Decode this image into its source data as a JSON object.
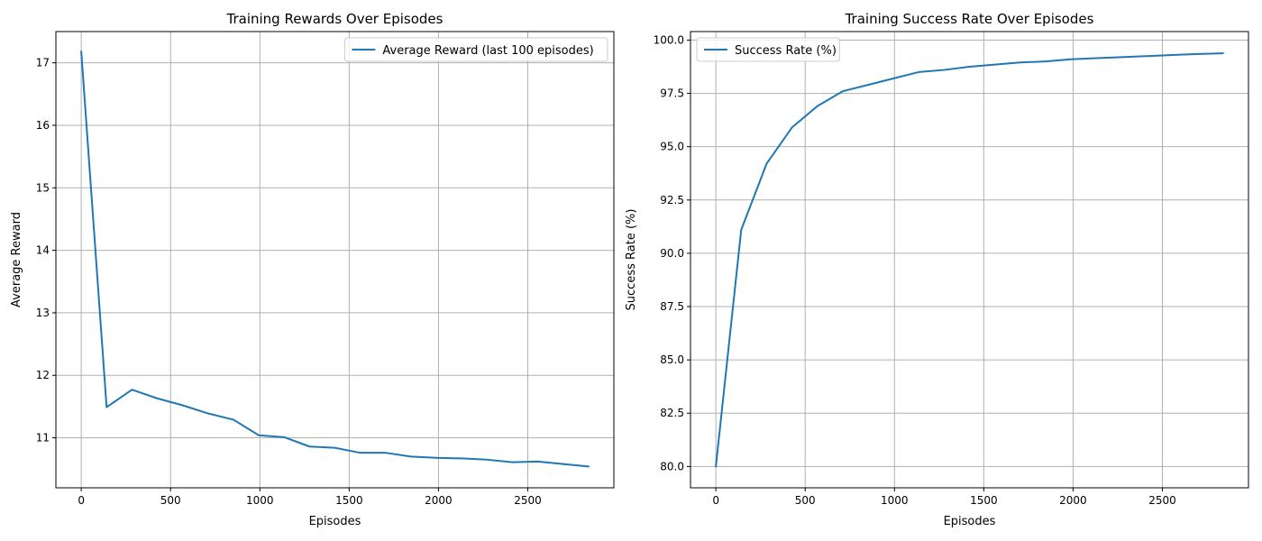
{
  "chart_data": [
    {
      "type": "line",
      "title": "Training Rewards Over Episodes",
      "xlabel": "Episodes",
      "ylabel": "Average Reward",
      "xlim": [
        -142,
        2982
      ],
      "ylim": [
        10.2,
        17.5
      ],
      "xticks": [
        "0",
        "500",
        "1000",
        "1500",
        "2000",
        "2500"
      ],
      "yticks": [
        "11",
        "12",
        "13",
        "14",
        "15",
        "16",
        "17"
      ],
      "grid": true,
      "legend_position": "upper right",
      "series": [
        {
          "name": "Average Reward (last 100 episodes)",
          "color": "#1f77b4",
          "x": [
            0,
            142,
            284,
            426,
            568,
            710,
            852,
            994,
            1136,
            1278,
            1420,
            1562,
            1704,
            1846,
            1988,
            2130,
            2272,
            2414,
            2556,
            2698,
            2840
          ],
          "y": [
            17.18,
            11.49,
            11.77,
            11.63,
            11.52,
            11.39,
            11.29,
            11.04,
            11.01,
            10.86,
            10.84,
            10.76,
            10.76,
            10.7,
            10.68,
            10.67,
            10.65,
            10.61,
            10.62,
            10.58,
            10.54
          ]
        }
      ]
    },
    {
      "type": "line",
      "title": "Training Success Rate Over Episodes",
      "xlabel": "Episodes",
      "ylabel": "Success Rate (%)",
      "xlim": [
        -142,
        2982
      ],
      "ylim": [
        79.0,
        100.4
      ],
      "xticks": [
        "0",
        "500",
        "1000",
        "1500",
        "2000",
        "2500"
      ],
      "yticks": [
        "80.0",
        "82.5",
        "85.0",
        "87.5",
        "90.0",
        "92.5",
        "95.0",
        "97.5",
        "100.0"
      ],
      "grid": true,
      "legend_position": "upper left",
      "series": [
        {
          "name": "Success Rate (%)",
          "color": "#1f77b4",
          "x": [
            0,
            142,
            284,
            426,
            568,
            710,
            852,
            994,
            1136,
            1278,
            1420,
            1562,
            1704,
            1846,
            1988,
            2130,
            2272,
            2414,
            2556,
            2698,
            2840
          ],
          "y": [
            80.0,
            91.1,
            94.2,
            95.9,
            96.9,
            97.6,
            97.9,
            98.2,
            98.5,
            98.6,
            98.75,
            98.85,
            98.95,
            99.0,
            99.1,
            99.15,
            99.2,
            99.25,
            99.3,
            99.35,
            99.38
          ]
        }
      ]
    }
  ]
}
